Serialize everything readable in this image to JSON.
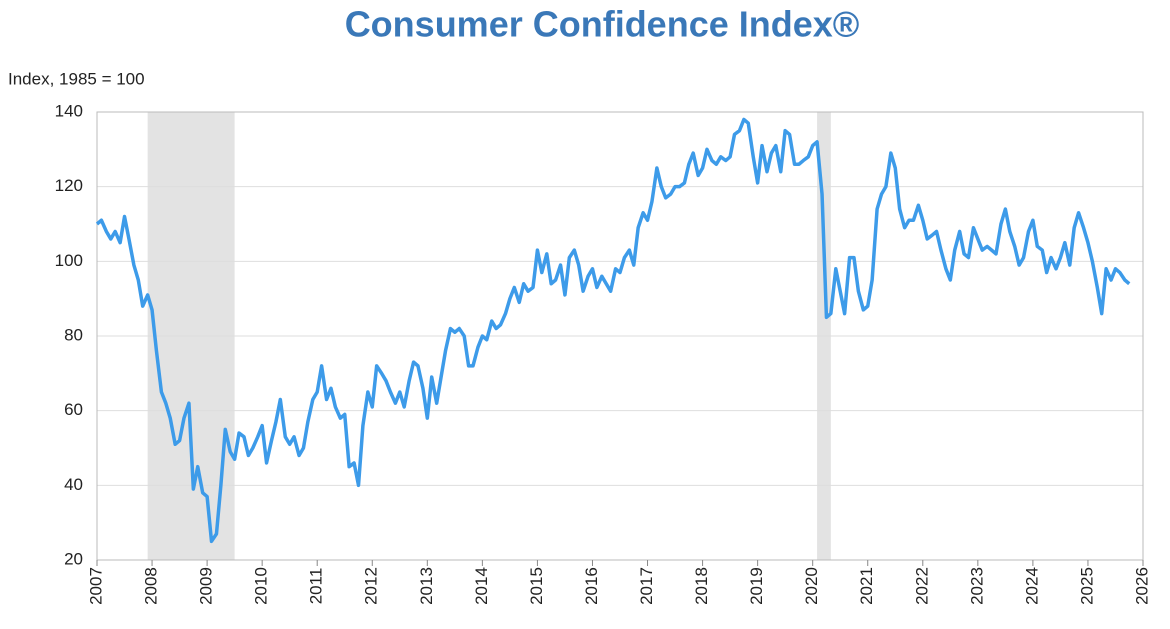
{
  "chart_data": {
    "type": "line",
    "title": "Consumer Confidence Index®",
    "y_axis_label": "Index, 1985 = 100",
    "x": [
      2007.0,
      2007.08,
      2007.17,
      2007.25,
      2007.33,
      2007.42,
      2007.5,
      2007.58,
      2007.67,
      2007.75,
      2007.83,
      2007.92,
      2008.0,
      2008.08,
      2008.17,
      2008.25,
      2008.33,
      2008.42,
      2008.5,
      2008.58,
      2008.67,
      2008.75,
      2008.83,
      2008.92,
      2009.0,
      2009.08,
      2009.17,
      2009.25,
      2009.33,
      2009.42,
      2009.5,
      2009.58,
      2009.67,
      2009.75,
      2009.83,
      2009.92,
      2010.0,
      2010.08,
      2010.17,
      2010.25,
      2010.33,
      2010.42,
      2010.5,
      2010.58,
      2010.67,
      2010.75,
      2010.83,
      2010.92,
      2011.0,
      2011.08,
      2011.17,
      2011.25,
      2011.33,
      2011.42,
      2011.5,
      2011.58,
      2011.67,
      2011.75,
      2011.83,
      2011.92,
      2012.0,
      2012.08,
      2012.17,
      2012.25,
      2012.33,
      2012.42,
      2012.5,
      2012.58,
      2012.67,
      2012.75,
      2012.83,
      2012.92,
      2013.0,
      2013.08,
      2013.17,
      2013.25,
      2013.33,
      2013.42,
      2013.5,
      2013.58,
      2013.67,
      2013.75,
      2013.83,
      2013.92,
      2014.0,
      2014.08,
      2014.17,
      2014.25,
      2014.33,
      2014.42,
      2014.5,
      2014.58,
      2014.67,
      2014.75,
      2014.83,
      2014.92,
      2015.0,
      2015.08,
      2015.17,
      2015.25,
      2015.33,
      2015.42,
      2015.5,
      2015.58,
      2015.67,
      2015.75,
      2015.83,
      2015.92,
      2016.0,
      2016.08,
      2016.17,
      2016.25,
      2016.33,
      2016.42,
      2016.5,
      2016.58,
      2016.67,
      2016.75,
      2016.83,
      2016.92,
      2017.0,
      2017.08,
      2017.17,
      2017.25,
      2017.33,
      2017.42,
      2017.5,
      2017.58,
      2017.67,
      2017.75,
      2017.83,
      2017.92,
      2018.0,
      2018.08,
      2018.17,
      2018.25,
      2018.33,
      2018.42,
      2018.5,
      2018.58,
      2018.67,
      2018.75,
      2018.83,
      2018.92,
      2019.0,
      2019.08,
      2019.17,
      2019.25,
      2019.33,
      2019.42,
      2019.5,
      2019.58,
      2019.67,
      2019.75,
      2019.83,
      2019.92,
      2020.0,
      2020.08,
      2020.17,
      2020.25,
      2020.33,
      2020.42,
      2020.5,
      2020.58,
      2020.67,
      2020.75,
      2020.83,
      2020.92,
      2021.0,
      2021.08,
      2021.17,
      2021.25,
      2021.33,
      2021.42,
      2021.5,
      2021.58,
      2021.67,
      2021.75,
      2021.83,
      2021.92,
      2022.0,
      2022.08,
      2022.17,
      2022.25,
      2022.33,
      2022.42,
      2022.5,
      2022.58,
      2022.67,
      2022.75,
      2022.83,
      2022.92,
      2023.0,
      2023.08,
      2023.17,
      2023.25,
      2023.33,
      2023.42,
      2023.5,
      2023.58,
      2023.67,
      2023.75,
      2023.83,
      2023.92,
      2024.0,
      2024.08,
      2024.17,
      2024.25,
      2024.33,
      2024.42,
      2024.5,
      2024.58,
      2024.67,
      2024.75,
      2024.83,
      2024.92,
      2025.0,
      2025.08,
      2025.17,
      2025.25,
      2025.33,
      2025.42,
      2025.5,
      2025.58,
      2025.67,
      2025.75
    ],
    "series": [
      {
        "color": "#3d9be9",
        "values": [
          110,
          111,
          108,
          106,
          108,
          105,
          112,
          106,
          99,
          95,
          88,
          91,
          87,
          76,
          65,
          62,
          58,
          51,
          52,
          58,
          62,
          39,
          45,
          38,
          37,
          25,
          27,
          40,
          55,
          49,
          47,
          54,
          53,
          48,
          50,
          53,
          56,
          46,
          52,
          57,
          63,
          53,
          51,
          53,
          48,
          50,
          57,
          63,
          65,
          72,
          63,
          66,
          61,
          58,
          59,
          45,
          46,
          40,
          56,
          65,
          61,
          72,
          70,
          68,
          65,
          62,
          65,
          61,
          68,
          73,
          72,
          66,
          58,
          69,
          62,
          69,
          76,
          82,
          81,
          82,
          80,
          72,
          72,
          77,
          80,
          79,
          84,
          82,
          83,
          86,
          90,
          93,
          89,
          94,
          92,
          93,
          103,
          97,
          102,
          94,
          95,
          99,
          91,
          101,
          103,
          99,
          92,
          96,
          98,
          93,
          96,
          94,
          92,
          98,
          97,
          101,
          103,
          99,
          109,
          113,
          111,
          116,
          125,
          120,
          117,
          118,
          120,
          120,
          121,
          126,
          129,
          123,
          125,
          130,
          127,
          126,
          128,
          127,
          128,
          134,
          135,
          138,
          137,
          128,
          121,
          131,
          124,
          129,
          131,
          124,
          135,
          134,
          126,
          126,
          127,
          128,
          131,
          132,
          118,
          85,
          86,
          98,
          92,
          86,
          101,
          101,
          92,
          87,
          88,
          95,
          114,
          118,
          120,
          129,
          125,
          114,
          109,
          111,
          111,
          115,
          111,
          106,
          107,
          108,
          103,
          98,
          95,
          103,
          108,
          102,
          101,
          109,
          106,
          103,
          104,
          103,
          102,
          110,
          114,
          108,
          104,
          99,
          101,
          108,
          111,
          104,
          103,
          97,
          101,
          98,
          101,
          105,
          99,
          109,
          113,
          109,
          105,
          100,
          93,
          86,
          98,
          95,
          98,
          97,
          95,
          94
        ]
      }
    ],
    "shaded_periods": [
      [
        2007.92,
        2009.5
      ],
      [
        2020.08,
        2020.33
      ]
    ],
    "shade_color": "#e3e3e3",
    "xlim": [
      2007,
      2026
    ],
    "xticks": [
      2007,
      2008,
      2009,
      2010,
      2011,
      2012,
      2013,
      2014,
      2015,
      2016,
      2017,
      2018,
      2019,
      2020,
      2021,
      2022,
      2023,
      2024,
      2025,
      2026
    ],
    "ylim": [
      20,
      140
    ],
    "yticks": [
      20,
      40,
      60,
      80,
      100,
      120,
      140
    ],
    "grid": true
  }
}
